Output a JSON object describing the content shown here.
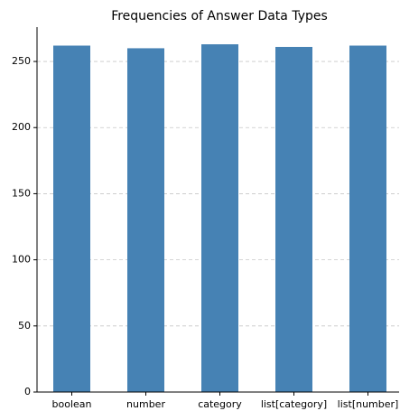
{
  "chart_data": {
    "type": "bar",
    "title": "Frequencies of Answer Data Types",
    "categories": [
      "boolean",
      "number",
      "category",
      "list[category]",
      "list[number]"
    ],
    "values": [
      262,
      260,
      263,
      261,
      262
    ],
    "color": "#4682b4",
    "ylim": [
      0,
      276
    ],
    "yticks": [
      0,
      50,
      100,
      150,
      200,
      250
    ],
    "grid": true
  }
}
